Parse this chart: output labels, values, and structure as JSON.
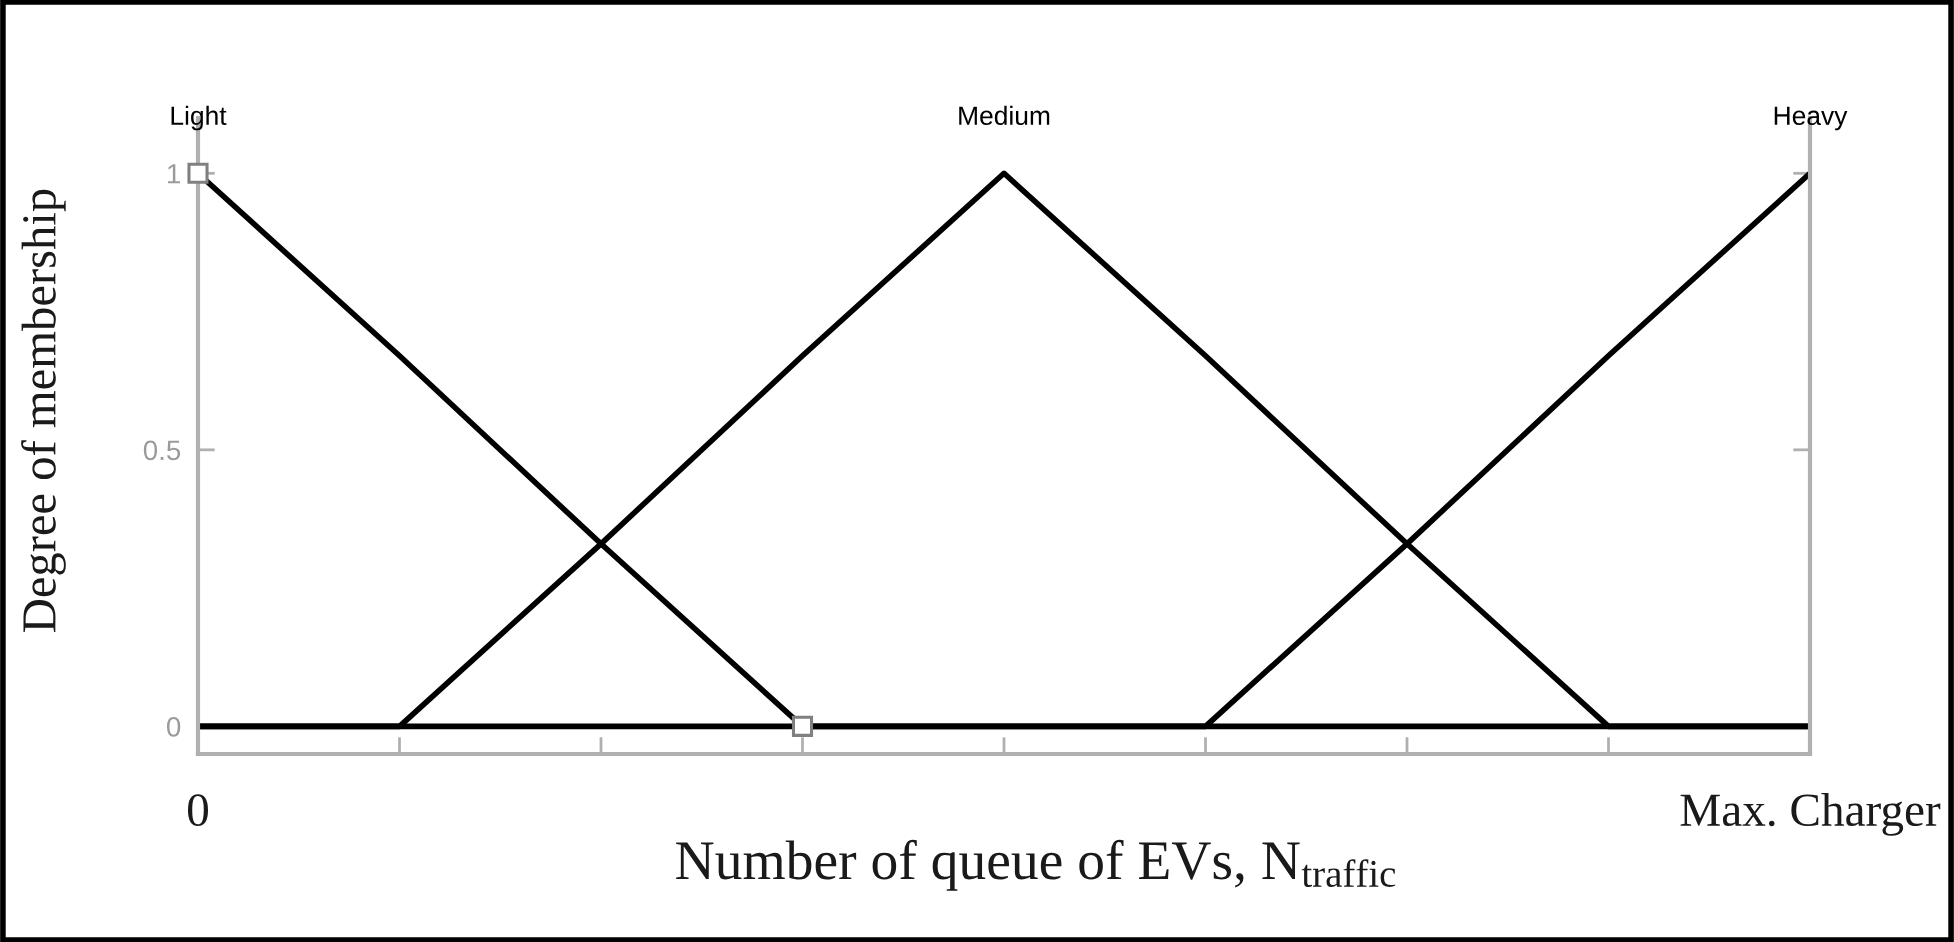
{
  "chart_data": {
    "type": "line",
    "xlabel": "Number of queue of EVs, N$_{traffic}$",
    "ylabel": "Degree of membership",
    "categories": [
      "0",
      null,
      null,
      null,
      null,
      null,
      null,
      null,
      "Max. Charger"
    ],
    "ylim": [
      -0.05,
      1.1
    ],
    "yticks": [
      0,
      0.5,
      1
    ],
    "line_style": "solid",
    "series": [
      {
        "name": "Light",
        "color": "#000000",
        "values": [
          1,
          0.67,
          0.33,
          0,
          0,
          0,
          0,
          0,
          0
        ]
      },
      {
        "name": "Medium",
        "color": "#000000",
        "values": [
          0,
          0,
          0.33,
          0.67,
          1,
          0.67,
          0.33,
          0,
          0
        ]
      },
      {
        "name": "Heavy",
        "color": "#000000",
        "values": [
          0,
          0,
          0,
          0,
          0,
          0,
          0.33,
          0.67,
          1
        ]
      },
      {
        "type": "scatter",
        "color": "#808080",
        "marker": "square",
        "values": [
          1,
          null,
          null,
          0,
          null,
          null,
          null,
          null,
          null
        ]
      }
    ]
  }
}
